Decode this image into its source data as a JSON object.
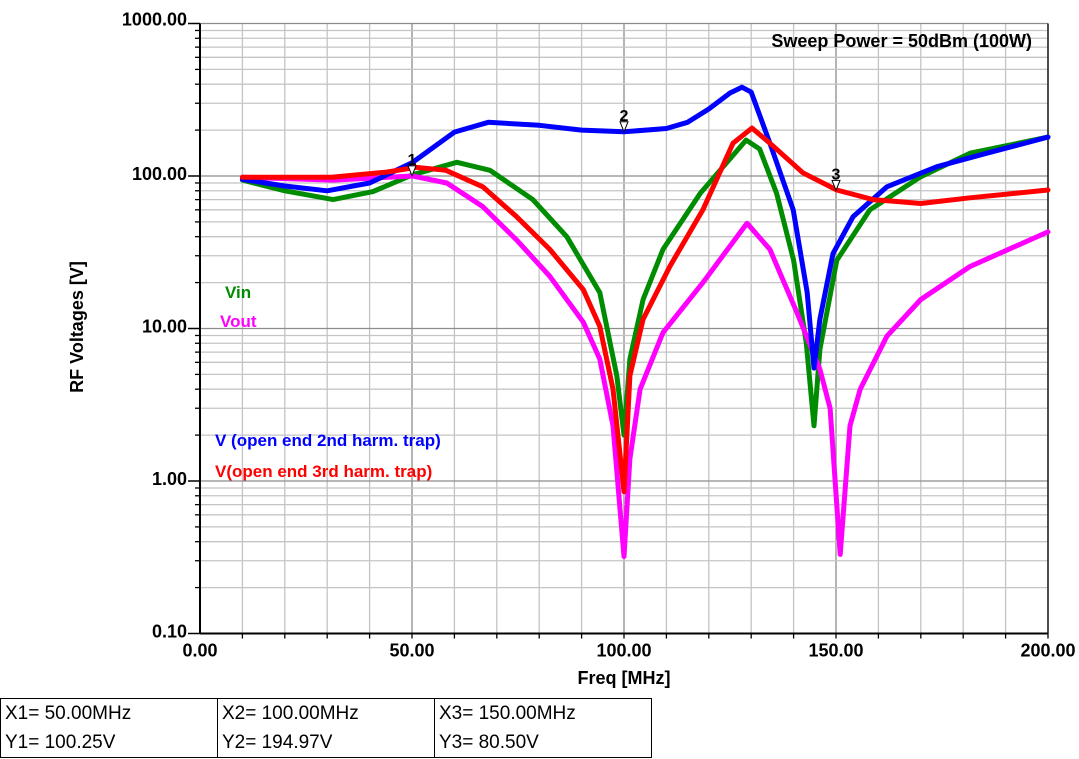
{
  "chart_data": {
    "type": "line",
    "title": "Sweep Power = 50dBm (100W)",
    "xlabel": "Freq [MHz]",
    "ylabel": "RF Voltages [V]",
    "xlim": [
      0,
      200
    ],
    "ylim": [
      0.1,
      1000
    ],
    "yscale": "log",
    "grid": true,
    "x_ticks": [
      0,
      50,
      100,
      150,
      200
    ],
    "x_tick_labels": [
      "0.00",
      "50.00",
      "100.00",
      "150.00",
      "200.00"
    ],
    "y_ticks": [
      1000,
      100,
      10,
      1,
      0.1
    ],
    "y_tick_labels": [
      "1000.00",
      "100.00",
      "10.00",
      "1.00",
      "0.10"
    ],
    "series": [
      {
        "name": "Vin",
        "color": "#008c00",
        "points": [
          [
            10,
            94
          ],
          [
            20,
            80
          ],
          [
            31.4,
            70
          ],
          [
            40.8,
            79
          ],
          [
            50.2,
            102
          ],
          [
            60.6,
            123
          ],
          [
            68.4,
            109
          ],
          [
            78.5,
            70
          ],
          [
            86.5,
            40
          ],
          [
            94.3,
            17.2
          ],
          [
            98.3,
            4.9
          ],
          [
            100,
            2.0
          ],
          [
            101.4,
            6.3
          ],
          [
            104.5,
            15.5
          ],
          [
            109.2,
            33
          ],
          [
            118,
            77
          ],
          [
            128.8,
            172
          ],
          [
            132,
            150
          ],
          [
            136,
            77
          ],
          [
            140,
            28
          ],
          [
            143,
            8
          ],
          [
            144.8,
            2.3
          ],
          [
            146.2,
            7.3
          ],
          [
            150.2,
            28
          ],
          [
            158,
            60
          ],
          [
            170,
            99
          ],
          [
            181.6,
            141
          ],
          [
            200,
            180
          ]
        ]
      },
      {
        "name": "Vout",
        "color": "#ff00ff",
        "points": [
          [
            10,
            98
          ],
          [
            31.4,
            94
          ],
          [
            50.2,
            100
          ],
          [
            58.2,
            90
          ],
          [
            66.7,
            63
          ],
          [
            74.7,
            38
          ],
          [
            82.5,
            22
          ],
          [
            90.4,
            11
          ],
          [
            94.3,
            6.3
          ],
          [
            97.4,
            2.3
          ],
          [
            100,
            0.32
          ],
          [
            101.4,
            1.4
          ],
          [
            103.8,
            4
          ],
          [
            109.2,
            9.4
          ],
          [
            118.6,
            20
          ],
          [
            129,
            49
          ],
          [
            134.4,
            33
          ],
          [
            140.8,
            12.7
          ],
          [
            146.2,
            5.4
          ],
          [
            148.6,
            3
          ],
          [
            151,
            0.33
          ],
          [
            153.3,
            2.3
          ],
          [
            155.7,
            4
          ],
          [
            162,
            8.9
          ],
          [
            170,
            15.5
          ],
          [
            181.6,
            25.5
          ],
          [
            200,
            43
          ]
        ]
      },
      {
        "name": "V (open end 2nd harm. trap)",
        "color": "#0000ff",
        "points": [
          [
            10,
            95
          ],
          [
            20,
            86
          ],
          [
            30,
            80
          ],
          [
            40,
            90
          ],
          [
            50,
            122
          ],
          [
            60,
            194
          ],
          [
            68,
            225
          ],
          [
            80,
            215
          ],
          [
            90,
            200
          ],
          [
            100,
            195
          ],
          [
            110,
            205
          ],
          [
            115,
            225
          ],
          [
            120,
            275
          ],
          [
            125,
            350
          ],
          [
            127.8,
            382
          ],
          [
            130,
            355
          ],
          [
            134.4,
            164
          ],
          [
            139.9,
            60
          ],
          [
            143.2,
            17.2
          ],
          [
            144.8,
            5.5
          ],
          [
            146.2,
            11.5
          ],
          [
            149.3,
            31
          ],
          [
            154,
            54
          ],
          [
            162,
            85
          ],
          [
            173.8,
            115
          ],
          [
            185.6,
            141
          ],
          [
            200,
            180
          ]
        ]
      },
      {
        "name": "V(open end 3rd harm. trap)",
        "color": "#ff0000",
        "points": [
          [
            10,
            98
          ],
          [
            31,
            98
          ],
          [
            44,
            106
          ],
          [
            51,
            114
          ],
          [
            58,
            109
          ],
          [
            66.7,
            85
          ],
          [
            74.7,
            54
          ],
          [
            82.5,
            33
          ],
          [
            90.4,
            18
          ],
          [
            94.3,
            10.3
          ],
          [
            97.4,
            4
          ],
          [
            100,
            0.85
          ],
          [
            101.4,
            4.9
          ],
          [
            104.5,
            11.5
          ],
          [
            110.8,
            25.5
          ],
          [
            118.6,
            60
          ],
          [
            125.7,
            164
          ],
          [
            130.2,
            206
          ],
          [
            134.4,
            164
          ],
          [
            142.2,
            105
          ],
          [
            150.2,
            81
          ],
          [
            158.7,
            70
          ],
          [
            170,
            66
          ],
          [
            181.6,
            72
          ],
          [
            200,
            81
          ]
        ]
      }
    ],
    "markers": [
      {
        "label": "1",
        "x": 50,
        "y": 100.25
      },
      {
        "label": "2",
        "x": 100,
        "y": 194.97
      },
      {
        "label": "3",
        "x": 150,
        "y": 80.5
      }
    ]
  },
  "readout": [
    {
      "x": "X1= 50.00MHz",
      "y": "Y1= 100.25V"
    },
    {
      "x": "X2= 100.00MHz",
      "y": "Y2= 194.97V"
    },
    {
      "x": "X3= 150.00MHz",
      "y": "Y3= 80.50V"
    }
  ]
}
